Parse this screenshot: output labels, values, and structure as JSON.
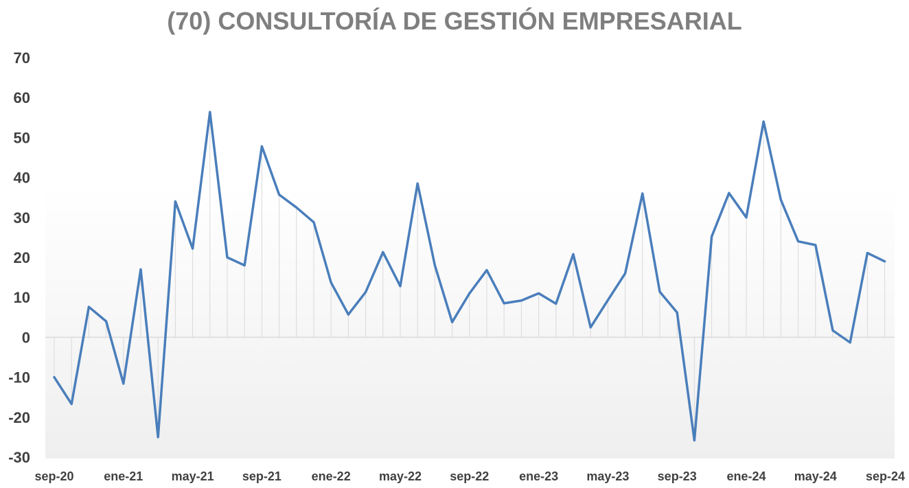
{
  "chart_data": {
    "type": "line",
    "title": "(70) CONSULTORÍA DE GESTIÓN EMPRESARIAL",
    "xlabel": "",
    "ylabel": "",
    "ylim": [
      -30,
      70
    ],
    "y_ticks": [
      70,
      60,
      50,
      40,
      30,
      20,
      10,
      0,
      -10,
      -20,
      -30
    ],
    "x_tick_labels": [
      "sep-20",
      "ene-21",
      "may-21",
      "sep-21",
      "ene-22",
      "may-22",
      "sep-22",
      "ene-23",
      "may-23",
      "sep-23",
      "ene-24",
      "may-24",
      "sep-24"
    ],
    "legend": "none",
    "grid": false,
    "colors": {
      "line": "#4a7ebb",
      "drop_lines": "#d9d9d9",
      "axis": "#d9d9d9"
    },
    "x": [
      "sep-20",
      "oct-20",
      "nov-20",
      "dic-20",
      "ene-21",
      "feb-21",
      "mar-21",
      "abr-21",
      "may-21",
      "jun-21",
      "jul-21",
      "ago-21",
      "sep-21",
      "oct-21",
      "nov-21",
      "dic-21",
      "ene-22",
      "feb-22",
      "mar-22",
      "abr-22",
      "may-22",
      "jun-22",
      "jul-22",
      "ago-22",
      "sep-22",
      "oct-22",
      "nov-22",
      "dic-22",
      "ene-23",
      "feb-23",
      "mar-23",
      "abr-23",
      "may-23",
      "jun-23",
      "jul-23",
      "ago-23",
      "sep-23",
      "oct-23",
      "nov-23",
      "dic-23",
      "ene-24",
      "feb-24",
      "mar-24",
      "abr-24",
      "may-24",
      "jun-24",
      "jul-24",
      "ago-24",
      "sep-24"
    ],
    "series": [
      {
        "values": [
          -10,
          -16.7,
          7.6,
          4,
          -11.6,
          17,
          -25,
          34,
          22.2,
          56.4,
          20,
          18,
          47.8,
          35.7,
          32.5,
          28.8,
          13.7,
          5.7,
          11.3,
          21.3,
          12.8,
          38.5,
          18,
          3.8,
          11,
          16.8,
          8.5,
          9.2,
          11,
          8.4,
          20.8,
          2.5,
          9.3,
          16,
          36,
          11.4,
          6.2,
          -25.8,
          25.2,
          36.1,
          30,
          54,
          34.4,
          24,
          23.1,
          1.7,
          -1.3,
          21.1,
          19
        ]
      }
    ]
  }
}
